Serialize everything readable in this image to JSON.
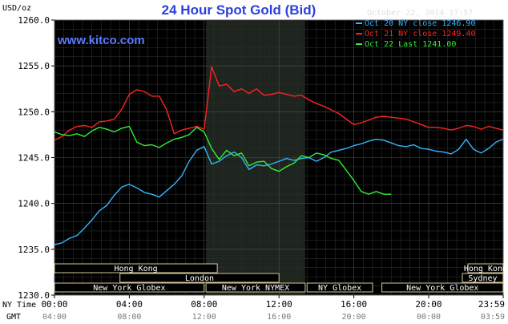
{
  "chart_data": {
    "type": "line",
    "title": "24 Hour Spot Gold (Bid)",
    "brand": "www.kitco.com",
    "ylabel": "USD/oz",
    "timestamp": "October 22, 2014 17:57",
    "ylim": [
      1230.0,
      1260.0
    ],
    "y_ticks": [
      "1230.0",
      "1235.0",
      "1240.0",
      "1245.0",
      "1250.0",
      "1255.0",
      "1260.0"
    ],
    "x_label_ny": "NY Time",
    "x_label_gmt": "GMT",
    "x_ticks_ny": [
      "00:00",
      "04:00",
      "08:00",
      "12:00",
      "16:00",
      "20:00",
      "23:59"
    ],
    "x_ticks_gmt": [
      "04:00",
      "08:00",
      "12:00",
      "16:00",
      "20:00",
      "00:00",
      "03:59"
    ],
    "x_tick_hours": [
      0,
      4,
      8,
      12,
      16,
      20,
      23.983
    ],
    "grid": true,
    "legend_position": "top-right",
    "colors": {
      "background": "#000000",
      "grid": "#3a3a3a",
      "nymex_shade": "#1e241e",
      "axis_text": "#000000",
      "title": "#2b3fe0",
      "brand": "#5a7bff",
      "legend_text": "#e0e0e0",
      "session_box": "#d2c89a",
      "session_text": "#ffffff"
    },
    "series": [
      {
        "name": "Oct 20 NY close 1246.90",
        "color": "#33b5ff",
        "x": [
          0,
          0.4,
          0.8,
          1.2,
          1.6,
          2.0,
          2.4,
          2.8,
          3.2,
          3.6,
          4.0,
          4.4,
          4.8,
          5.2,
          5.6,
          6.0,
          6.4,
          6.8,
          7.2,
          7.6,
          8.0,
          8.4,
          8.8,
          9.2,
          9.6,
          10.0,
          10.4,
          10.8,
          11.2,
          11.6,
          12.0,
          12.4,
          12.8,
          13.2,
          13.6,
          14.0,
          14.4,
          14.8,
          15.2,
          15.6,
          16.0,
          16.4,
          16.8,
          17.2,
          17.6,
          18.0,
          18.4,
          18.8,
          19.2,
          19.6,
          20.0,
          20.4,
          20.8,
          21.2,
          21.6,
          22.0,
          22.4,
          22.8,
          23.2,
          23.6,
          23.98
        ],
        "y": [
          1235.5,
          1235.7,
          1236.2,
          1236.5,
          1237.3,
          1238.2,
          1239.2,
          1239.8,
          1240.9,
          1241.8,
          1242.1,
          1241.7,
          1241.2,
          1241.0,
          1240.7,
          1241.4,
          1242.1,
          1243.0,
          1244.6,
          1245.8,
          1246.2,
          1244.3,
          1244.6,
          1245.2,
          1245.6,
          1245.0,
          1243.7,
          1244.2,
          1244.1,
          1244.3,
          1244.6,
          1244.9,
          1244.7,
          1244.9,
          1245.0,
          1244.6,
          1245.0,
          1245.6,
          1245.8,
          1246.0,
          1246.3,
          1246.5,
          1246.8,
          1247.0,
          1246.9,
          1246.6,
          1246.3,
          1246.2,
          1246.4,
          1246.0,
          1245.9,
          1245.7,
          1245.6,
          1245.4,
          1245.9,
          1247.0,
          1245.9,
          1245.5,
          1246.0,
          1246.7,
          1247.0
        ]
      },
      {
        "name": "Oct 21 NY close 1249.40",
        "color": "#ff2222",
        "x": [
          0,
          0.4,
          0.8,
          1.2,
          1.6,
          2.0,
          2.4,
          2.8,
          3.2,
          3.6,
          4.0,
          4.4,
          4.8,
          5.2,
          5.6,
          6.0,
          6.4,
          6.8,
          7.2,
          7.6,
          8.0,
          8.2,
          8.4,
          8.8,
          9.2,
          9.6,
          10.0,
          10.4,
          10.8,
          11.2,
          11.6,
          12.0,
          12.4,
          12.8,
          13.2,
          13.6,
          14.0,
          14.4,
          14.8,
          15.2,
          15.6,
          16.0,
          16.4,
          16.8,
          17.2,
          17.6,
          18.0,
          18.4,
          18.8,
          19.2,
          19.6,
          20.0,
          20.4,
          20.8,
          21.2,
          21.6,
          22.0,
          22.4,
          22.8,
          23.2,
          23.6,
          23.98
        ],
        "y": [
          1246.9,
          1247.3,
          1248.0,
          1248.4,
          1248.5,
          1248.3,
          1248.9,
          1249.0,
          1249.2,
          1250.3,
          1251.9,
          1252.4,
          1252.2,
          1251.7,
          1251.7,
          1250.2,
          1247.6,
          1248.0,
          1248.2,
          1248.4,
          1248.1,
          1251.5,
          1254.9,
          1252.8,
          1253.0,
          1252.2,
          1252.5,
          1252.0,
          1252.5,
          1251.8,
          1251.9,
          1252.1,
          1251.9,
          1251.7,
          1251.8,
          1251.3,
          1250.9,
          1250.6,
          1250.2,
          1249.8,
          1249.2,
          1248.6,
          1248.8,
          1249.1,
          1249.4,
          1249.5,
          1249.4,
          1249.3,
          1249.2,
          1248.9,
          1248.6,
          1248.3,
          1248.3,
          1248.2,
          1248.0,
          1248.2,
          1248.5,
          1248.4,
          1248.1,
          1248.4,
          1248.2,
          1248.0
        ]
      },
      {
        "name": "Oct 22 Last 1241.00",
        "color": "#33ee33",
        "x": [
          0,
          0.4,
          0.8,
          1.2,
          1.6,
          2.0,
          2.4,
          2.8,
          3.2,
          3.6,
          4.0,
          4.4,
          4.8,
          5.2,
          5.6,
          6.0,
          6.4,
          6.8,
          7.2,
          7.6,
          8.0,
          8.4,
          8.8,
          9.2,
          9.6,
          10.0,
          10.4,
          10.8,
          11.2,
          11.6,
          12.0,
          12.4,
          12.8,
          13.2,
          13.6,
          14.0,
          14.4,
          14.8,
          15.2,
          15.6,
          16.0,
          16.4,
          16.8,
          17.2,
          17.6,
          18.0
        ],
        "y": [
          1247.8,
          1247.5,
          1247.4,
          1247.6,
          1247.3,
          1247.9,
          1248.3,
          1248.1,
          1247.8,
          1248.2,
          1248.4,
          1246.7,
          1246.3,
          1246.4,
          1246.1,
          1246.6,
          1247.0,
          1247.2,
          1247.5,
          1248.3,
          1247.8,
          1246.0,
          1244.8,
          1245.8,
          1245.2,
          1245.5,
          1244.1,
          1244.5,
          1244.6,
          1243.8,
          1243.5,
          1244.0,
          1244.4,
          1245.2,
          1245.0,
          1245.5,
          1245.3,
          1244.9,
          1244.7,
          1243.6,
          1242.5,
          1241.3,
          1241.0,
          1241.3,
          1241.0,
          1241.0
        ]
      }
    ],
    "sessions": [
      {
        "label": "Hong Kong",
        "start": 0,
        "end": 8.7,
        "row": 0
      },
      {
        "label": "Hong Kong",
        "start": 22.1,
        "end": 23.98,
        "row": 0
      },
      {
        "label": "London",
        "start": 3.5,
        "end": 12.0,
        "row": 1
      },
      {
        "label": "Sydney",
        "start": 21.8,
        "end": 23.98,
        "row": 1
      },
      {
        "label": "New York Globex",
        "start": 0,
        "end": 8.0,
        "row": 2
      },
      {
        "label": "New York NYMEX",
        "start": 8.1,
        "end": 13.4,
        "row": 2
      },
      {
        "label": "NY Globex",
        "start": 13.5,
        "end": 17.0,
        "row": 2
      },
      {
        "label": "New York Globex",
        "start": 17.5,
        "end": 23.98,
        "row": 2
      }
    ],
    "nymex_window": [
      8.1,
      13.4
    ]
  }
}
